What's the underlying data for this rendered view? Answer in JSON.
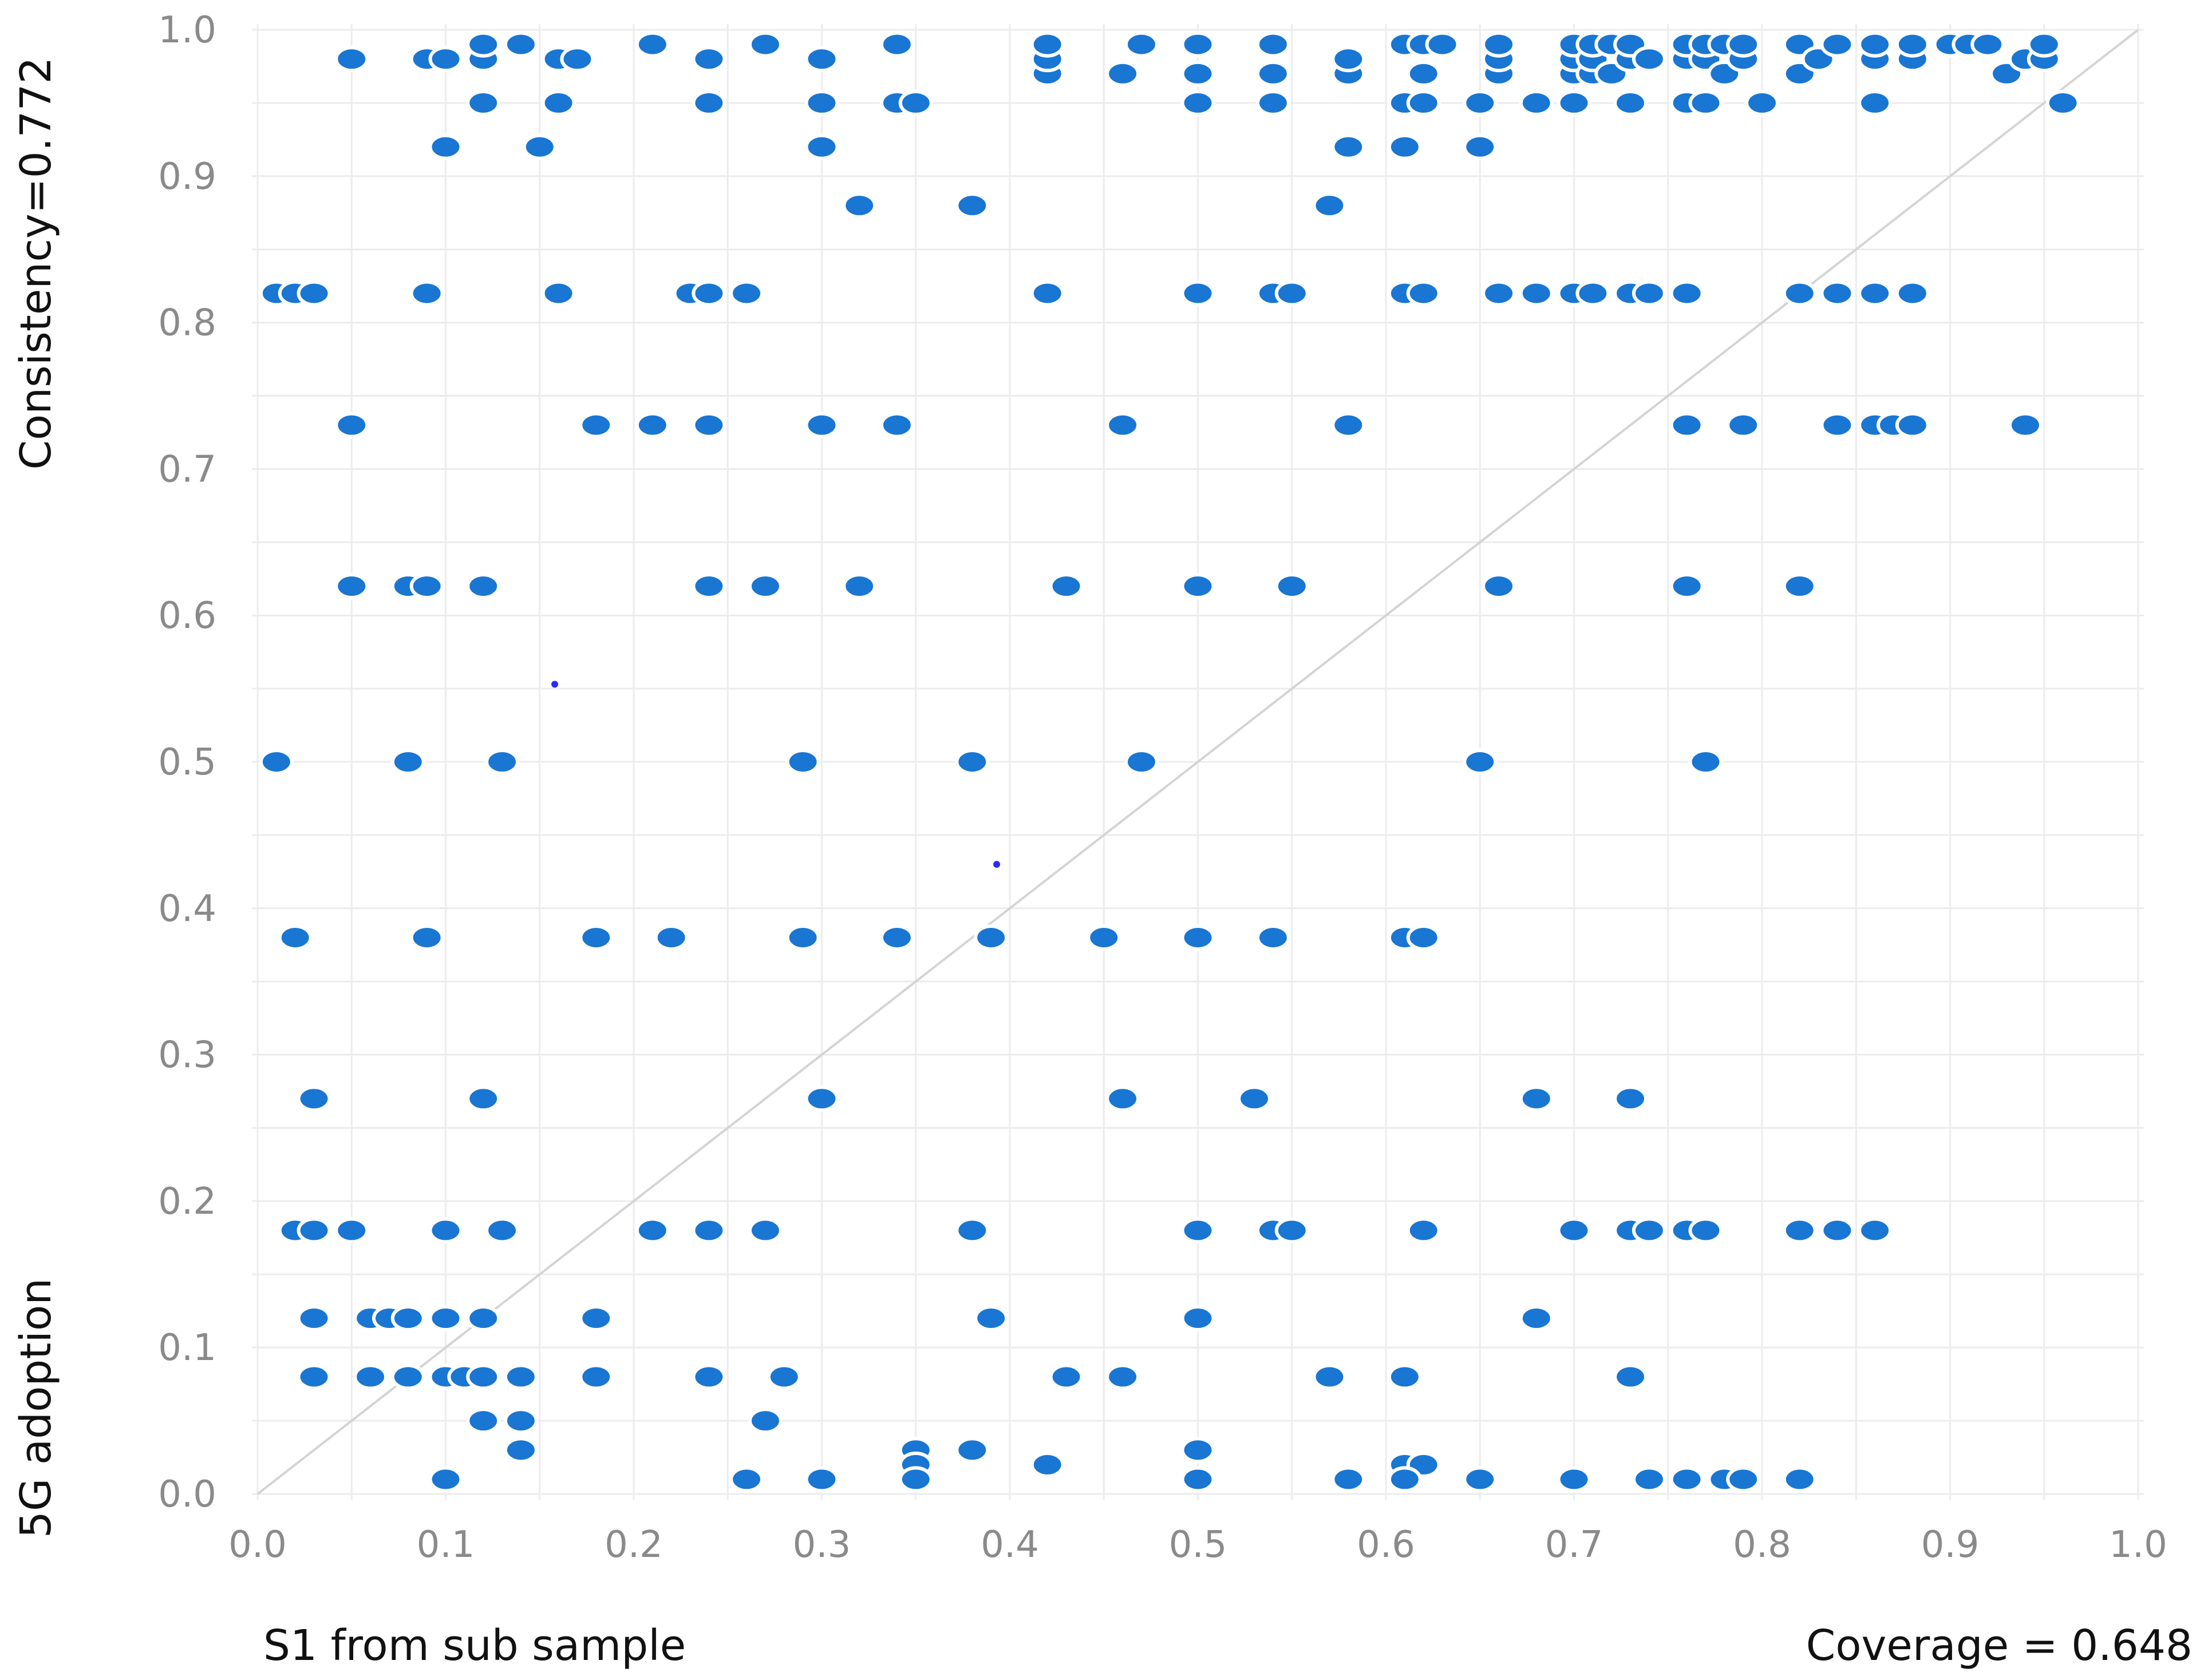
{
  "chart_data": {
    "type": "scatter",
    "xlabel": "S1 from sub sample",
    "ylabel": "5G adoption",
    "consistency_label": "Consistency=0.772",
    "coverage_label": "Coverage = 0.648",
    "xlim": [
      0,
      1
    ],
    "ylim": [
      0,
      1
    ],
    "xticks": [
      "0.0",
      "0.1",
      "0.2",
      "0.3",
      "0.4",
      "0.5",
      "0.6",
      "0.7",
      "0.8",
      "0.9",
      "1.0"
    ],
    "yticks": [
      "0.0",
      "0.1",
      "0.2",
      "0.3",
      "0.4",
      "0.5",
      "0.6",
      "0.7",
      "0.8",
      "0.9",
      "1.0"
    ],
    "grid": true,
    "reference_line": "y = x",
    "point_color": "#1976d2",
    "marker_color": "#2a2aff",
    "points": [
      [
        0.05,
        0.98
      ],
      [
        0.09,
        0.98
      ],
      [
        0.1,
        0.98
      ],
      [
        0.12,
        0.98
      ],
      [
        0.12,
        0.99
      ],
      [
        0.14,
        0.99
      ],
      [
        0.16,
        0.98
      ],
      [
        0.17,
        0.98
      ],
      [
        0.21,
        0.99
      ],
      [
        0.24,
        0.98
      ],
      [
        0.27,
        0.99
      ],
      [
        0.3,
        0.98
      ],
      [
        0.34,
        0.99
      ],
      [
        0.42,
        0.97
      ],
      [
        0.42,
        0.98
      ],
      [
        0.42,
        0.99
      ],
      [
        0.46,
        0.97
      ],
      [
        0.47,
        0.99
      ],
      [
        0.5,
        0.97
      ],
      [
        0.5,
        0.99
      ],
      [
        0.54,
        0.97
      ],
      [
        0.54,
        0.99
      ],
      [
        0.58,
        0.97
      ],
      [
        0.58,
        0.98
      ],
      [
        0.61,
        0.99
      ],
      [
        0.62,
        0.97
      ],
      [
        0.62,
        0.99
      ],
      [
        0.63,
        0.99
      ],
      [
        0.66,
        0.97
      ],
      [
        0.66,
        0.98
      ],
      [
        0.66,
        0.99
      ],
      [
        0.7,
        0.97
      ],
      [
        0.7,
        0.98
      ],
      [
        0.7,
        0.99
      ],
      [
        0.71,
        0.97
      ],
      [
        0.71,
        0.98
      ],
      [
        0.71,
        0.99
      ],
      [
        0.72,
        0.97
      ],
      [
        0.72,
        0.99
      ],
      [
        0.73,
        0.98
      ],
      [
        0.73,
        0.99
      ],
      [
        0.74,
        0.98
      ],
      [
        0.76,
        0.98
      ],
      [
        0.76,
        0.99
      ],
      [
        0.77,
        0.98
      ],
      [
        0.77,
        0.99
      ],
      [
        0.78,
        0.97
      ],
      [
        0.78,
        0.99
      ],
      [
        0.79,
        0.98
      ],
      [
        0.79,
        0.99
      ],
      [
        0.82,
        0.97
      ],
      [
        0.82,
        0.99
      ],
      [
        0.83,
        0.98
      ],
      [
        0.84,
        0.99
      ],
      [
        0.86,
        0.98
      ],
      [
        0.86,
        0.99
      ],
      [
        0.88,
        0.98
      ],
      [
        0.88,
        0.99
      ],
      [
        0.9,
        0.99
      ],
      [
        0.91,
        0.99
      ],
      [
        0.92,
        0.99
      ],
      [
        0.93,
        0.97
      ],
      [
        0.94,
        0.98
      ],
      [
        0.95,
        0.98
      ],
      [
        0.95,
        0.99
      ],
      [
        0.12,
        0.95
      ],
      [
        0.16,
        0.95
      ],
      [
        0.24,
        0.95
      ],
      [
        0.3,
        0.95
      ],
      [
        0.34,
        0.95
      ],
      [
        0.35,
        0.95
      ],
      [
        0.5,
        0.95
      ],
      [
        0.54,
        0.95
      ],
      [
        0.61,
        0.95
      ],
      [
        0.62,
        0.95
      ],
      [
        0.65,
        0.95
      ],
      [
        0.68,
        0.95
      ],
      [
        0.7,
        0.95
      ],
      [
        0.73,
        0.95
      ],
      [
        0.76,
        0.95
      ],
      [
        0.77,
        0.95
      ],
      [
        0.8,
        0.95
      ],
      [
        0.86,
        0.95
      ],
      [
        0.96,
        0.95
      ],
      [
        0.1,
        0.92
      ],
      [
        0.15,
        0.92
      ],
      [
        0.3,
        0.92
      ],
      [
        0.58,
        0.92
      ],
      [
        0.61,
        0.92
      ],
      [
        0.65,
        0.92
      ],
      [
        0.32,
        0.88
      ],
      [
        0.38,
        0.88
      ],
      [
        0.57,
        0.88
      ],
      [
        0.01,
        0.82
      ],
      [
        0.02,
        0.82
      ],
      [
        0.03,
        0.82
      ],
      [
        0.09,
        0.82
      ],
      [
        0.16,
        0.82
      ],
      [
        0.23,
        0.82
      ],
      [
        0.24,
        0.82
      ],
      [
        0.26,
        0.82
      ],
      [
        0.42,
        0.82
      ],
      [
        0.5,
        0.82
      ],
      [
        0.54,
        0.82
      ],
      [
        0.55,
        0.82
      ],
      [
        0.61,
        0.82
      ],
      [
        0.62,
        0.82
      ],
      [
        0.66,
        0.82
      ],
      [
        0.68,
        0.82
      ],
      [
        0.7,
        0.82
      ],
      [
        0.71,
        0.82
      ],
      [
        0.73,
        0.82
      ],
      [
        0.74,
        0.82
      ],
      [
        0.76,
        0.82
      ],
      [
        0.82,
        0.82
      ],
      [
        0.84,
        0.82
      ],
      [
        0.86,
        0.82
      ],
      [
        0.88,
        0.82
      ],
      [
        0.05,
        0.73
      ],
      [
        0.18,
        0.73
      ],
      [
        0.21,
        0.73
      ],
      [
        0.24,
        0.73
      ],
      [
        0.3,
        0.73
      ],
      [
        0.34,
        0.73
      ],
      [
        0.46,
        0.73
      ],
      [
        0.58,
        0.73
      ],
      [
        0.76,
        0.73
      ],
      [
        0.79,
        0.73
      ],
      [
        0.84,
        0.73
      ],
      [
        0.86,
        0.73
      ],
      [
        0.87,
        0.73
      ],
      [
        0.88,
        0.73
      ],
      [
        0.94,
        0.73
      ],
      [
        0.05,
        0.62
      ],
      [
        0.08,
        0.62
      ],
      [
        0.09,
        0.62
      ],
      [
        0.12,
        0.62
      ],
      [
        0.24,
        0.62
      ],
      [
        0.27,
        0.62
      ],
      [
        0.32,
        0.62
      ],
      [
        0.43,
        0.62
      ],
      [
        0.5,
        0.62
      ],
      [
        0.55,
        0.62
      ],
      [
        0.66,
        0.62
      ],
      [
        0.76,
        0.62
      ],
      [
        0.82,
        0.62
      ],
      [
        0.01,
        0.5
      ],
      [
        0.08,
        0.5
      ],
      [
        0.13,
        0.5
      ],
      [
        0.29,
        0.5
      ],
      [
        0.38,
        0.5
      ],
      [
        0.47,
        0.5
      ],
      [
        0.65,
        0.5
      ],
      [
        0.77,
        0.5
      ],
      [
        0.02,
        0.38
      ],
      [
        0.09,
        0.38
      ],
      [
        0.18,
        0.38
      ],
      [
        0.22,
        0.38
      ],
      [
        0.29,
        0.38
      ],
      [
        0.34,
        0.38
      ],
      [
        0.39,
        0.38
      ],
      [
        0.45,
        0.38
      ],
      [
        0.5,
        0.38
      ],
      [
        0.54,
        0.38
      ],
      [
        0.61,
        0.38
      ],
      [
        0.62,
        0.38
      ],
      [
        0.03,
        0.27
      ],
      [
        0.12,
        0.27
      ],
      [
        0.3,
        0.27
      ],
      [
        0.46,
        0.27
      ],
      [
        0.53,
        0.27
      ],
      [
        0.68,
        0.27
      ],
      [
        0.73,
        0.27
      ],
      [
        0.02,
        0.18
      ],
      [
        0.03,
        0.18
      ],
      [
        0.05,
        0.18
      ],
      [
        0.1,
        0.18
      ],
      [
        0.13,
        0.18
      ],
      [
        0.21,
        0.18
      ],
      [
        0.24,
        0.18
      ],
      [
        0.27,
        0.18
      ],
      [
        0.38,
        0.18
      ],
      [
        0.5,
        0.18
      ],
      [
        0.54,
        0.18
      ],
      [
        0.55,
        0.18
      ],
      [
        0.62,
        0.18
      ],
      [
        0.7,
        0.18
      ],
      [
        0.73,
        0.18
      ],
      [
        0.74,
        0.18
      ],
      [
        0.76,
        0.18
      ],
      [
        0.77,
        0.18
      ],
      [
        0.82,
        0.18
      ],
      [
        0.84,
        0.18
      ],
      [
        0.86,
        0.18
      ],
      [
        0.03,
        0.12
      ],
      [
        0.06,
        0.12
      ],
      [
        0.07,
        0.12
      ],
      [
        0.08,
        0.12
      ],
      [
        0.1,
        0.12
      ],
      [
        0.12,
        0.12
      ],
      [
        0.18,
        0.12
      ],
      [
        0.39,
        0.12
      ],
      [
        0.5,
        0.12
      ],
      [
        0.68,
        0.12
      ],
      [
        0.03,
        0.08
      ],
      [
        0.06,
        0.08
      ],
      [
        0.08,
        0.08
      ],
      [
        0.1,
        0.08
      ],
      [
        0.11,
        0.08
      ],
      [
        0.12,
        0.08
      ],
      [
        0.14,
        0.08
      ],
      [
        0.18,
        0.08
      ],
      [
        0.24,
        0.08
      ],
      [
        0.28,
        0.08
      ],
      [
        0.43,
        0.08
      ],
      [
        0.46,
        0.08
      ],
      [
        0.57,
        0.08
      ],
      [
        0.61,
        0.08
      ],
      [
        0.73,
        0.08
      ],
      [
        0.12,
        0.05
      ],
      [
        0.14,
        0.05
      ],
      [
        0.27,
        0.05
      ],
      [
        0.14,
        0.03
      ],
      [
        0.35,
        0.03
      ],
      [
        0.38,
        0.03
      ],
      [
        0.5,
        0.03
      ],
      [
        0.35,
        0.02
      ],
      [
        0.42,
        0.02
      ],
      [
        0.61,
        0.02
      ],
      [
        0.62,
        0.02
      ],
      [
        0.1,
        0.01
      ],
      [
        0.26,
        0.01
      ],
      [
        0.3,
        0.01
      ],
      [
        0.35,
        0.01
      ],
      [
        0.5,
        0.01
      ],
      [
        0.58,
        0.01
      ],
      [
        0.61,
        0.01
      ],
      [
        0.65,
        0.01
      ],
      [
        0.7,
        0.01
      ],
      [
        0.74,
        0.01
      ],
      [
        0.76,
        0.01
      ],
      [
        0.78,
        0.01
      ],
      [
        0.79,
        0.01
      ],
      [
        0.82,
        0.01
      ]
    ],
    "markers": [
      [
        0.158,
        0.553
      ],
      [
        0.393,
        0.43
      ]
    ]
  }
}
